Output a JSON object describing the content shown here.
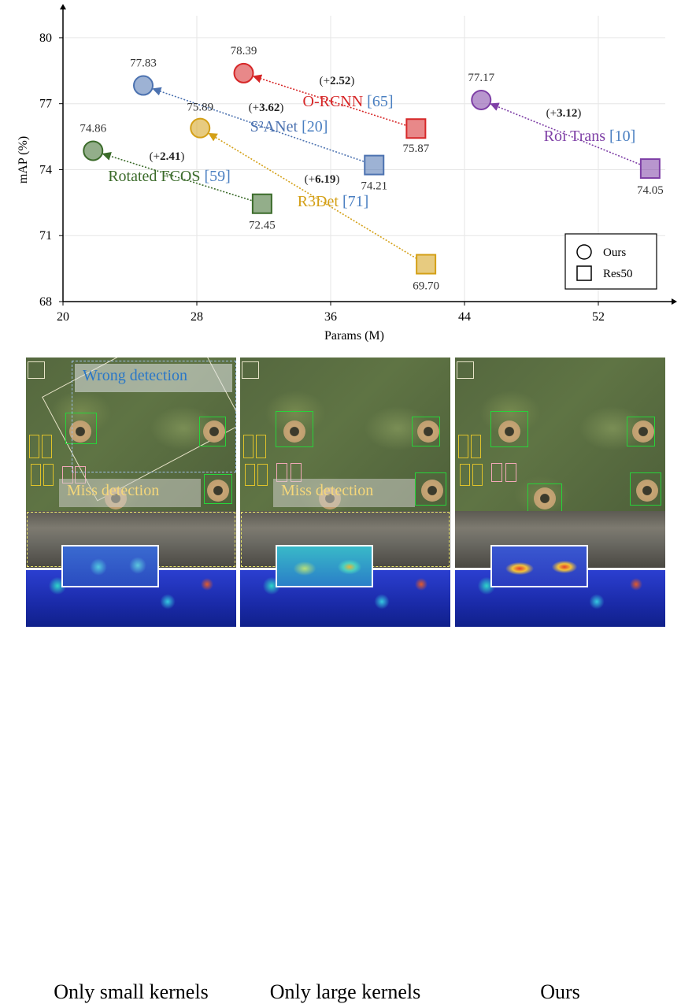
{
  "chart_data": {
    "type": "scatter",
    "xlabel": "Params (M)",
    "ylabel": "mAP (%)",
    "xlim": [
      20,
      56
    ],
    "ylim": [
      68,
      81
    ],
    "xticks": [
      20,
      28,
      36,
      44,
      52
    ],
    "yticks": [
      68,
      71,
      74,
      77,
      80
    ],
    "grid": true,
    "legend": {
      "placement": "bottom-right",
      "entries": [
        {
          "marker": "circle",
          "label": "Ours"
        },
        {
          "marker": "square",
          "label": "Res50"
        }
      ]
    },
    "series": [
      {
        "name": "O-RCNN",
        "ref": "65",
        "color": "#d62728",
        "ours": {
          "x": 30.8,
          "y": 78.39,
          "label": "78.39"
        },
        "res50": {
          "x": 41.1,
          "y": 75.87,
          "label": "75.87"
        },
        "gain": "+2.52"
      },
      {
        "name": "S²ANet",
        "ref": "20",
        "color": "#4c72b0",
        "ours": {
          "x": 24.8,
          "y": 77.83,
          "label": "77.83"
        },
        "res50": {
          "x": 38.6,
          "y": 74.21,
          "label": "74.21"
        },
        "gain": "+3.62"
      },
      {
        "name": "Roi Trans",
        "ref": "10",
        "color": "#7e3fa6",
        "ours": {
          "x": 45.0,
          "y": 77.17,
          "label": "77.17"
        },
        "res50": {
          "x": 55.1,
          "y": 74.05,
          "label": "74.05"
        },
        "gain": "+3.12"
      },
      {
        "name": "R3Det",
        "ref": "71",
        "color": "#d4a017",
        "ours": {
          "x": 28.2,
          "y": 75.89,
          "label": "75.89"
        },
        "res50": {
          "x": 41.7,
          "y": 69.7,
          "label": "69.70"
        },
        "gain": "+6.19"
      },
      {
        "name": "Rotated FCOS",
        "ref": "59",
        "color": "#3b6b2a",
        "ours": {
          "x": 21.8,
          "y": 74.86,
          "label": "74.86"
        },
        "res50": {
          "x": 31.9,
          "y": 72.45,
          "label": "72.45"
        },
        "gain": "+2.41"
      }
    ]
  },
  "panels": [
    {
      "caption": "Only small kernels",
      "callouts": [
        "Wrong detection",
        "Miss detection"
      ]
    },
    {
      "caption": "Only large kernels",
      "callouts": [
        "Miss detection"
      ]
    },
    {
      "caption": "Ours",
      "callouts": []
    }
  ]
}
